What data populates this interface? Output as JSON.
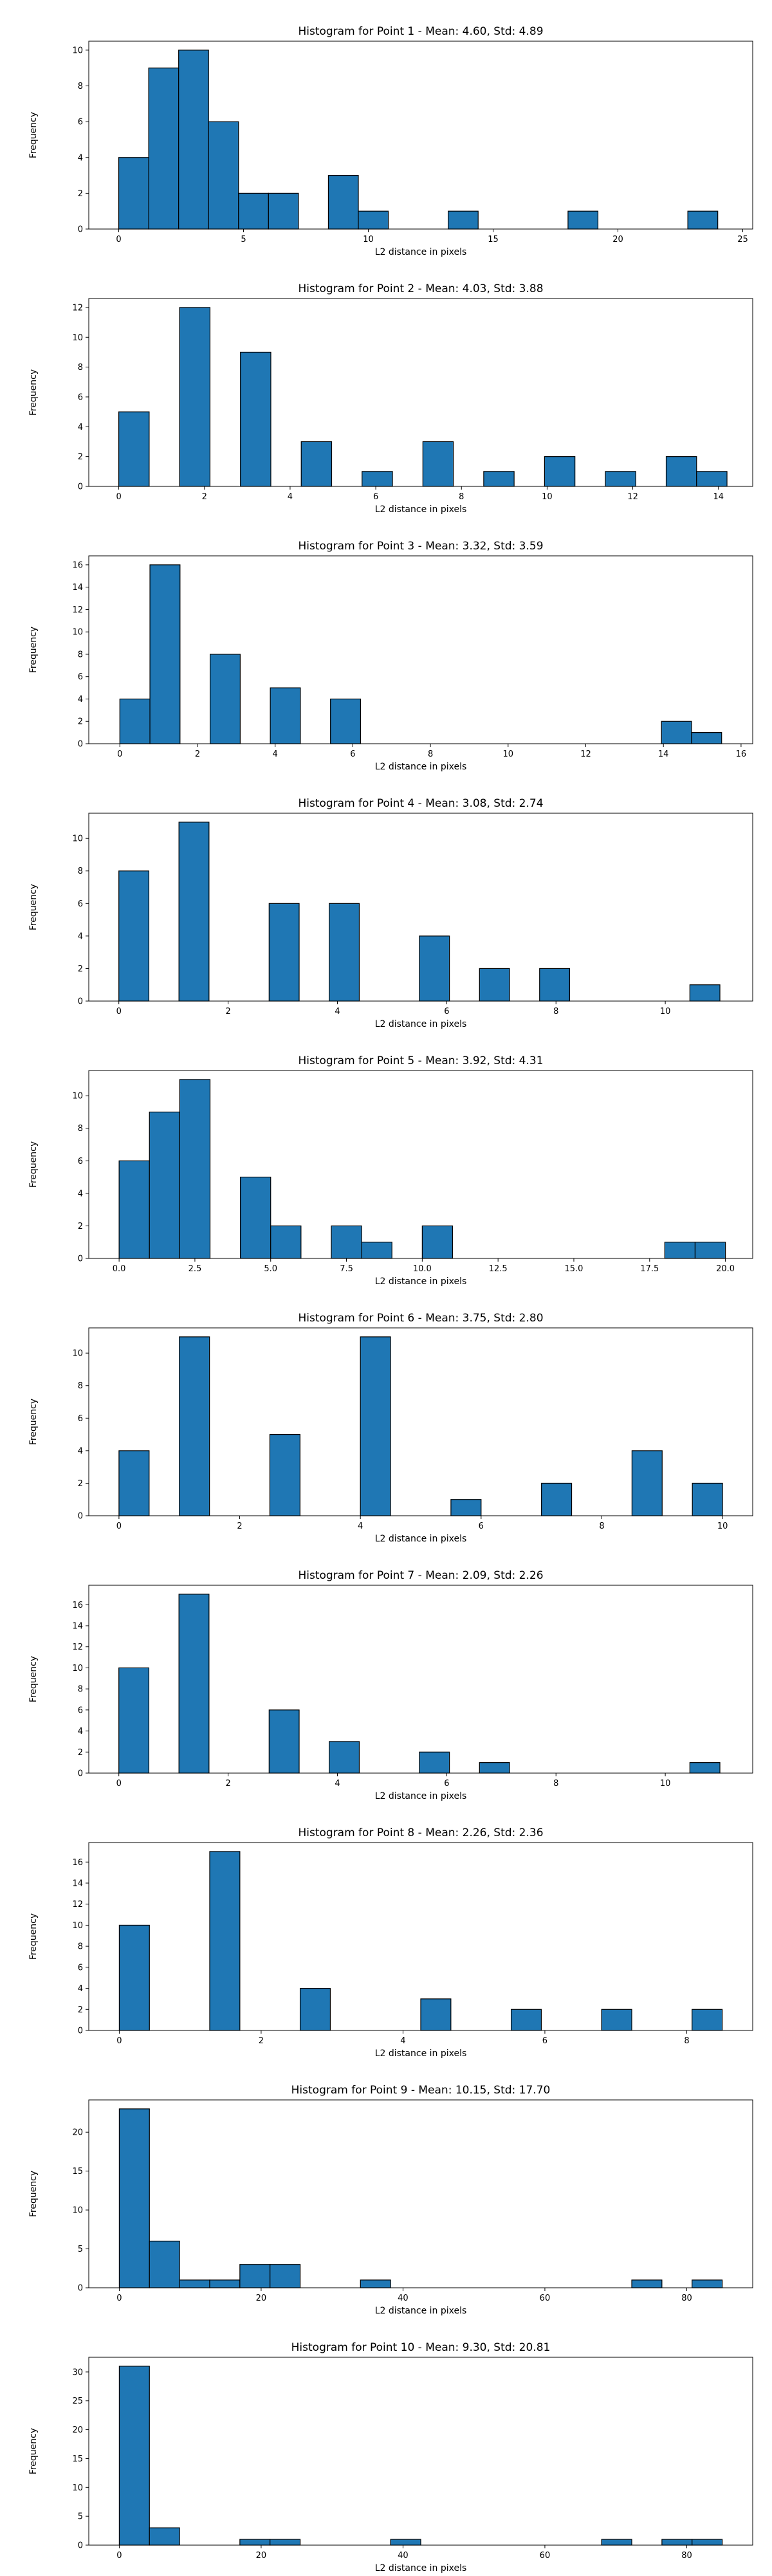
{
  "chart_data": [
    {
      "type": "bar",
      "title": "Histogram for Point 1 - Mean: 4.60, Std: 4.89",
      "xlabel": "L2 distance in pixels",
      "ylabel": "Frequency",
      "bar_color": "#1f77b4",
      "xlim": [
        -1.2,
        25.4
      ],
      "ylim": [
        0,
        10.5
      ],
      "xticks": [
        0,
        5,
        10,
        15,
        20,
        25
      ],
      "xtick_labels": [
        "0",
        "5",
        "10",
        "15",
        "20",
        "25"
      ],
      "yticks": [
        0,
        2,
        4,
        6,
        8,
        10
      ],
      "ytick_labels": [
        "0",
        "2",
        "4",
        "6",
        "8",
        "10"
      ],
      "bins": [
        [
          0,
          1.2,
          4
        ],
        [
          1.2,
          2.4,
          9
        ],
        [
          2.4,
          3.6,
          10
        ],
        [
          3.6,
          4.8,
          6
        ],
        [
          4.8,
          6.0,
          2
        ],
        [
          6.0,
          7.2,
          2
        ],
        [
          8.4,
          9.6,
          3
        ],
        [
          9.6,
          10.8,
          1
        ],
        [
          13.2,
          14.4,
          1
        ],
        [
          18.0,
          19.2,
          1
        ],
        [
          22.8,
          24.0,
          1
        ]
      ]
    },
    {
      "type": "bar",
      "title": "Histogram for Point 2 - Mean: 4.03, Std: 3.88",
      "xlabel": "L2 distance in pixels",
      "ylabel": "Frequency",
      "bar_color": "#1f77b4",
      "xlim": [
        -0.7,
        14.8
      ],
      "ylim": [
        0,
        12.6
      ],
      "xticks": [
        0,
        2,
        4,
        6,
        8,
        10,
        12,
        14
      ],
      "xtick_labels": [
        "0",
        "2",
        "4",
        "6",
        "8",
        "10",
        "12",
        "14"
      ],
      "yticks": [
        0,
        2,
        4,
        6,
        8,
        10,
        12
      ],
      "ytick_labels": [
        "0",
        "2",
        "4",
        "6",
        "8",
        "10",
        "12"
      ],
      "bins": [
        [
          0,
          0.71,
          5
        ],
        [
          1.42,
          2.13,
          12
        ],
        [
          2.84,
          3.55,
          9
        ],
        [
          4.26,
          4.97,
          3
        ],
        [
          5.68,
          6.39,
          1
        ],
        [
          7.1,
          7.81,
          3
        ],
        [
          8.52,
          9.23,
          1
        ],
        [
          9.94,
          10.65,
          2
        ],
        [
          11.36,
          12.07,
          1
        ],
        [
          12.78,
          13.49,
          2
        ],
        [
          13.49,
          14.2,
          1
        ]
      ]
    },
    {
      "type": "bar",
      "title": "Histogram for Point 3 - Mean: 3.32, Std: 3.59",
      "xlabel": "L2 distance in pixels",
      "ylabel": "Frequency",
      "bar_color": "#1f77b4",
      "xlim": [
        -0.8,
        16.3
      ],
      "ylim": [
        0,
        16.8
      ],
      "xticks": [
        0,
        2,
        4,
        6,
        8,
        10,
        12,
        14,
        16
      ],
      "xtick_labels": [
        "0",
        "2",
        "4",
        "6",
        "8",
        "10",
        "12",
        "14",
        "16"
      ],
      "yticks": [
        0,
        2,
        4,
        6,
        8,
        10,
        12,
        14,
        16
      ],
      "ytick_labels": [
        "0",
        "2",
        "4",
        "6",
        "8",
        "10",
        "12",
        "14",
        "16"
      ],
      "bins": [
        [
          0,
          0.775,
          4
        ],
        [
          0.775,
          1.55,
          16
        ],
        [
          2.325,
          3.1,
          8
        ],
        [
          3.875,
          4.65,
          5
        ],
        [
          5.425,
          6.2,
          4
        ],
        [
          13.95,
          14.725,
          2
        ],
        [
          14.725,
          15.5,
          1
        ]
      ]
    },
    {
      "type": "bar",
      "title": "Histogram for Point 4 - Mean: 3.08, Std: 2.74",
      "xlabel": "L2 distance in pixels",
      "ylabel": "Frequency",
      "bar_color": "#1f77b4",
      "xlim": [
        -0.55,
        11.6
      ],
      "ylim": [
        0,
        11.55
      ],
      "xticks": [
        0,
        2,
        4,
        6,
        8,
        10
      ],
      "xtick_labels": [
        "0",
        "2",
        "4",
        "6",
        "8",
        "10"
      ],
      "yticks": [
        0,
        2,
        4,
        6,
        8,
        10
      ],
      "ytick_labels": [
        "0",
        "2",
        "4",
        "6",
        "8",
        "10"
      ],
      "bins": [
        [
          0,
          0.55,
          8
        ],
        [
          1.1,
          1.65,
          11
        ],
        [
          2.75,
          3.3,
          6
        ],
        [
          3.85,
          4.4,
          6
        ],
        [
          5.5,
          6.05,
          4
        ],
        [
          6.6,
          7.15,
          2
        ],
        [
          7.7,
          8.25,
          2
        ],
        [
          10.45,
          11.0,
          1
        ]
      ]
    },
    {
      "type": "bar",
      "title": "Histogram for Point 5 - Mean: 3.92, Std: 4.31",
      "xlabel": "L2 distance in pixels",
      "ylabel": "Frequency",
      "bar_color": "#1f77b4",
      "xlim": [
        -1.0,
        20.9
      ],
      "ylim": [
        0,
        11.55
      ],
      "xticks": [
        0,
        2.5,
        5,
        7.5,
        10,
        12.5,
        15,
        17.5,
        20
      ],
      "xtick_labels": [
        "0.0",
        "2.5",
        "5.0",
        "7.5",
        "10.0",
        "12.5",
        "15.0",
        "17.5",
        "20.0"
      ],
      "yticks": [
        0,
        2,
        4,
        6,
        8,
        10
      ],
      "ytick_labels": [
        "0",
        "2",
        "4",
        "6",
        "8",
        "10"
      ],
      "bins": [
        [
          0,
          1,
          6
        ],
        [
          1,
          2,
          9
        ],
        [
          2,
          3,
          11
        ],
        [
          4,
          5,
          5
        ],
        [
          5,
          6,
          2
        ],
        [
          7,
          8,
          2
        ],
        [
          8,
          9,
          1
        ],
        [
          10,
          11,
          2
        ],
        [
          18,
          19,
          1
        ],
        [
          19,
          20,
          1
        ]
      ]
    },
    {
      "type": "bar",
      "title": "Histogram for Point 6 - Mean: 3.75, Std: 2.80",
      "xlabel": "L2 distance in pixels",
      "ylabel": "Frequency",
      "bar_color": "#1f77b4",
      "xlim": [
        -0.5,
        10.5
      ],
      "ylim": [
        0,
        11.55
      ],
      "xticks": [
        0,
        2,
        4,
        6,
        8,
        10
      ],
      "xtick_labels": [
        "0",
        "2",
        "4",
        "6",
        "8",
        "10"
      ],
      "yticks": [
        0,
        2,
        4,
        6,
        8,
        10
      ],
      "ytick_labels": [
        "0",
        "2",
        "4",
        "6",
        "8",
        "10"
      ],
      "bins": [
        [
          0,
          0.5,
          4
        ],
        [
          1,
          1.5,
          11
        ],
        [
          2.5,
          3,
          5
        ],
        [
          4,
          4.5,
          11
        ],
        [
          5.5,
          6,
          1
        ],
        [
          7,
          7.5,
          2
        ],
        [
          8.5,
          9,
          4
        ],
        [
          9.5,
          10,
          2
        ]
      ]
    },
    {
      "type": "bar",
      "title": "Histogram for Point 7 - Mean: 2.09, Std: 2.26",
      "xlabel": "L2 distance in pixels",
      "ylabel": "Frequency",
      "bar_color": "#1f77b4",
      "xlim": [
        -0.55,
        11.6
      ],
      "ylim": [
        0,
        17.85
      ],
      "xticks": [
        0,
        2,
        4,
        6,
        8,
        10
      ],
      "xtick_labels": [
        "0",
        "2",
        "4",
        "6",
        "8",
        "10"
      ],
      "yticks": [
        0,
        2,
        4,
        6,
        8,
        10,
        12,
        14,
        16
      ],
      "ytick_labels": [
        "0",
        "2",
        "4",
        "6",
        "8",
        "10",
        "12",
        "14",
        "16"
      ],
      "bins": [
        [
          0,
          0.55,
          10
        ],
        [
          1.1,
          1.65,
          17
        ],
        [
          2.75,
          3.3,
          6
        ],
        [
          3.85,
          4.4,
          3
        ],
        [
          5.5,
          6.05,
          2
        ],
        [
          6.6,
          7.15,
          1
        ],
        [
          10.45,
          11.0,
          1
        ]
      ]
    },
    {
      "type": "bar",
      "title": "Histogram for Point 8 - Mean: 2.26, Std: 2.36",
      "xlabel": "L2 distance in pixels",
      "ylabel": "Frequency",
      "bar_color": "#1f77b4",
      "xlim": [
        -0.43,
        8.93
      ],
      "ylim": [
        0,
        17.85
      ],
      "xticks": [
        0,
        2,
        4,
        6,
        8
      ],
      "xtick_labels": [
        "0",
        "2",
        "4",
        "6",
        "8"
      ],
      "yticks": [
        0,
        2,
        4,
        6,
        8,
        10,
        12,
        14,
        16
      ],
      "ytick_labels": [
        "0",
        "2",
        "4",
        "6",
        "8",
        "10",
        "12",
        "14",
        "16"
      ],
      "bins": [
        [
          0,
          0.425,
          10
        ],
        [
          1.275,
          1.7,
          17
        ],
        [
          2.55,
          2.975,
          4
        ],
        [
          4.25,
          4.675,
          3
        ],
        [
          5.525,
          5.95,
          2
        ],
        [
          6.8,
          7.225,
          2
        ],
        [
          8.075,
          8.5,
          2
        ]
      ]
    },
    {
      "type": "bar",
      "title": "Histogram for Point 9 - Mean: 10.15, Std: 17.70",
      "xlabel": "L2 distance in pixels",
      "ylabel": "Frequency",
      "bar_color": "#1f77b4",
      "xlim": [
        -4.3,
        89.3
      ],
      "ylim": [
        0,
        24.15
      ],
      "xticks": [
        0,
        20,
        40,
        60,
        80
      ],
      "xtick_labels": [
        "0",
        "20",
        "40",
        "60",
        "80"
      ],
      "yticks": [
        0,
        5,
        10,
        15,
        20
      ],
      "ytick_labels": [
        "0",
        "5",
        "10",
        "15",
        "20"
      ],
      "bins": [
        [
          0,
          4.25,
          23
        ],
        [
          4.25,
          8.5,
          6
        ],
        [
          8.5,
          12.75,
          1
        ],
        [
          12.75,
          17,
          1
        ],
        [
          17,
          21.25,
          3
        ],
        [
          21.25,
          25.5,
          3
        ],
        [
          34,
          38.25,
          1
        ],
        [
          72.25,
          76.5,
          1
        ],
        [
          80.75,
          85,
          1
        ]
      ]
    },
    {
      "type": "bar",
      "title": "Histogram for Point 10 - Mean: 9.30, Std: 20.81",
      "xlabel": "L2 distance in pixels",
      "ylabel": "Frequency",
      "bar_color": "#1f77b4",
      "xlim": [
        -4.3,
        89.3
      ],
      "ylim": [
        0,
        32.55
      ],
      "xticks": [
        0,
        20,
        40,
        60,
        80
      ],
      "xtick_labels": [
        "0",
        "20",
        "40",
        "60",
        "80"
      ],
      "yticks": [
        0,
        5,
        10,
        15,
        20,
        25,
        30
      ],
      "ytick_labels": [
        "0",
        "5",
        "10",
        "15",
        "20",
        "25",
        "30"
      ],
      "bins": [
        [
          0,
          4.25,
          31
        ],
        [
          4.25,
          8.5,
          3
        ],
        [
          17,
          21.25,
          1
        ],
        [
          21.25,
          25.5,
          1
        ],
        [
          38.25,
          42.5,
          1
        ],
        [
          68,
          72.25,
          1
        ],
        [
          76.5,
          80.75,
          1
        ],
        [
          80.75,
          85,
          1
        ]
      ]
    }
  ]
}
